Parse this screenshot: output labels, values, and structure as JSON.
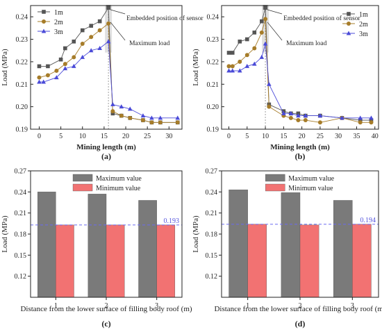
{
  "chart_data": [
    {
      "id": "a",
      "type": "line",
      "panel_label": "(a)",
      "xlabel": "Mining length (m)",
      "ylabel": "Load (MPa)",
      "xlim": [
        -2,
        33
      ],
      "ylim": [
        0.19,
        0.245
      ],
      "xticks": [
        0,
        5,
        10,
        15,
        20,
        25,
        30
      ],
      "yticks": [
        0.19,
        0.2,
        0.21,
        0.22,
        0.23,
        0.24
      ],
      "legend_position": "top-left",
      "annotations": [
        "Embedded position of sensor",
        "Maximum load"
      ],
      "sensor_x": 16,
      "series": [
        {
          "name": "1m",
          "color": "#555555",
          "marker": "square",
          "x": [
            0,
            2,
            5,
            6,
            8,
            10,
            12,
            14,
            16,
            17,
            19,
            21,
            24,
            26,
            28,
            32
          ],
          "y": [
            0.218,
            0.218,
            0.221,
            0.226,
            0.229,
            0.234,
            0.236,
            0.238,
            0.244,
            0.197,
            0.196,
            0.195,
            0.194,
            0.193,
            0.193,
            0.193
          ]
        },
        {
          "name": "2m",
          "color": "#a67c29",
          "marker": "circle",
          "x": [
            0,
            2,
            4,
            6,
            8,
            10,
            12,
            14,
            16,
            17,
            19,
            21,
            24,
            26,
            28,
            32
          ],
          "y": [
            0.213,
            0.214,
            0.216,
            0.219,
            0.222,
            0.228,
            0.231,
            0.234,
            0.237,
            0.198,
            0.196,
            0.195,
            0.194,
            0.193,
            0.193,
            0.193
          ]
        },
        {
          "name": "3m",
          "color": "#4a4ad8",
          "marker": "triangle",
          "x": [
            0,
            1,
            4,
            6,
            8,
            10,
            12,
            14,
            16,
            17,
            19,
            21,
            24,
            26,
            28,
            32
          ],
          "y": [
            0.211,
            0.211,
            0.213,
            0.217,
            0.218,
            0.222,
            0.225,
            0.226,
            0.229,
            0.201,
            0.2,
            0.199,
            0.196,
            0.195,
            0.195,
            0.195
          ]
        }
      ]
    },
    {
      "id": "b",
      "type": "line",
      "panel_label": "(b)",
      "xlabel": "Mining length (m)",
      "ylabel": "Load (MPa)",
      "xlim": [
        -2,
        41
      ],
      "ylim": [
        0.19,
        0.245
      ],
      "xticks": [
        0,
        5,
        10,
        15,
        20,
        25,
        30,
        35,
        40
      ],
      "yticks": [
        0.19,
        0.2,
        0.21,
        0.22,
        0.23,
        0.24
      ],
      "legend_position": "top-right",
      "annotations": [
        "Embedded position of sensor",
        "Maximum load"
      ],
      "sensor_x": 10,
      "series": [
        {
          "name": "1m",
          "color": "#555555",
          "marker": "square",
          "x": [
            0,
            1,
            3,
            5,
            7,
            9,
            10,
            11,
            15,
            17,
            19,
            21,
            25,
            31,
            36,
            39
          ],
          "y": [
            0.224,
            0.224,
            0.229,
            0.23,
            0.233,
            0.238,
            0.244,
            0.201,
            0.198,
            0.197,
            0.197,
            0.196,
            0.196,
            0.195,
            0.194,
            0.194
          ]
        },
        {
          "name": "2m",
          "color": "#a67c29",
          "marker": "circle",
          "x": [
            0,
            1,
            3,
            5,
            7,
            9,
            10,
            11,
            15,
            17,
            19,
            21,
            25,
            31,
            36,
            39
          ],
          "y": [
            0.218,
            0.218,
            0.22,
            0.223,
            0.226,
            0.233,
            0.239,
            0.2,
            0.196,
            0.195,
            0.194,
            0.194,
            0.193,
            0.195,
            0.193,
            0.193
          ]
        },
        {
          "name": "3m",
          "color": "#4a4ad8",
          "marker": "triangle",
          "x": [
            0,
            1,
            3,
            5,
            7,
            9,
            10,
            11,
            15,
            17,
            19,
            21,
            25,
            31,
            36,
            39
          ],
          "y": [
            0.216,
            0.216,
            0.216,
            0.218,
            0.219,
            0.222,
            0.228,
            0.21,
            0.197,
            0.197,
            0.196,
            0.196,
            0.196,
            0.195,
            0.195,
            0.195
          ]
        }
      ]
    },
    {
      "id": "c",
      "type": "bar",
      "panel_label": "(c)",
      "xlabel": "Distance from the lower surface of filling body roof (m)",
      "ylabel": "Load (MPa)",
      "categories": [
        "1",
        "2",
        "3"
      ],
      "ylim": [
        0.09,
        0.27
      ],
      "yticks": [
        0.12,
        0.15,
        0.18,
        0.21,
        0.24,
        0.27
      ],
      "legend_position": "top-center",
      "reference_line": {
        "value": 0.193,
        "label": "0.193"
      },
      "series": [
        {
          "name": "Maximum value",
          "color": "#7a7a7a",
          "values": [
            0.24,
            0.237,
            0.228
          ]
        },
        {
          "name": "Minimum value",
          "color": "#f27272",
          "values": [
            0.193,
            0.193,
            0.193
          ]
        }
      ]
    },
    {
      "id": "d",
      "type": "bar",
      "panel_label": "(d)",
      "xlabel": "Distance from the lower surface of filling body roof (m)",
      "ylabel": "Load (MPa)",
      "categories": [
        "1",
        "2",
        "3"
      ],
      "ylim": [
        0.09,
        0.27
      ],
      "yticks": [
        0.12,
        0.15,
        0.18,
        0.21,
        0.24,
        0.27
      ],
      "legend_position": "top-center",
      "reference_line": {
        "value": 0.194,
        "label": "0.194"
      },
      "series": [
        {
          "name": "Maximum value",
          "color": "#7a7a7a",
          "values": [
            0.243,
            0.239,
            0.228
          ]
        },
        {
          "name": "Minimum value",
          "color": "#f27272",
          "values": [
            0.194,
            0.193,
            0.194
          ]
        }
      ]
    }
  ]
}
